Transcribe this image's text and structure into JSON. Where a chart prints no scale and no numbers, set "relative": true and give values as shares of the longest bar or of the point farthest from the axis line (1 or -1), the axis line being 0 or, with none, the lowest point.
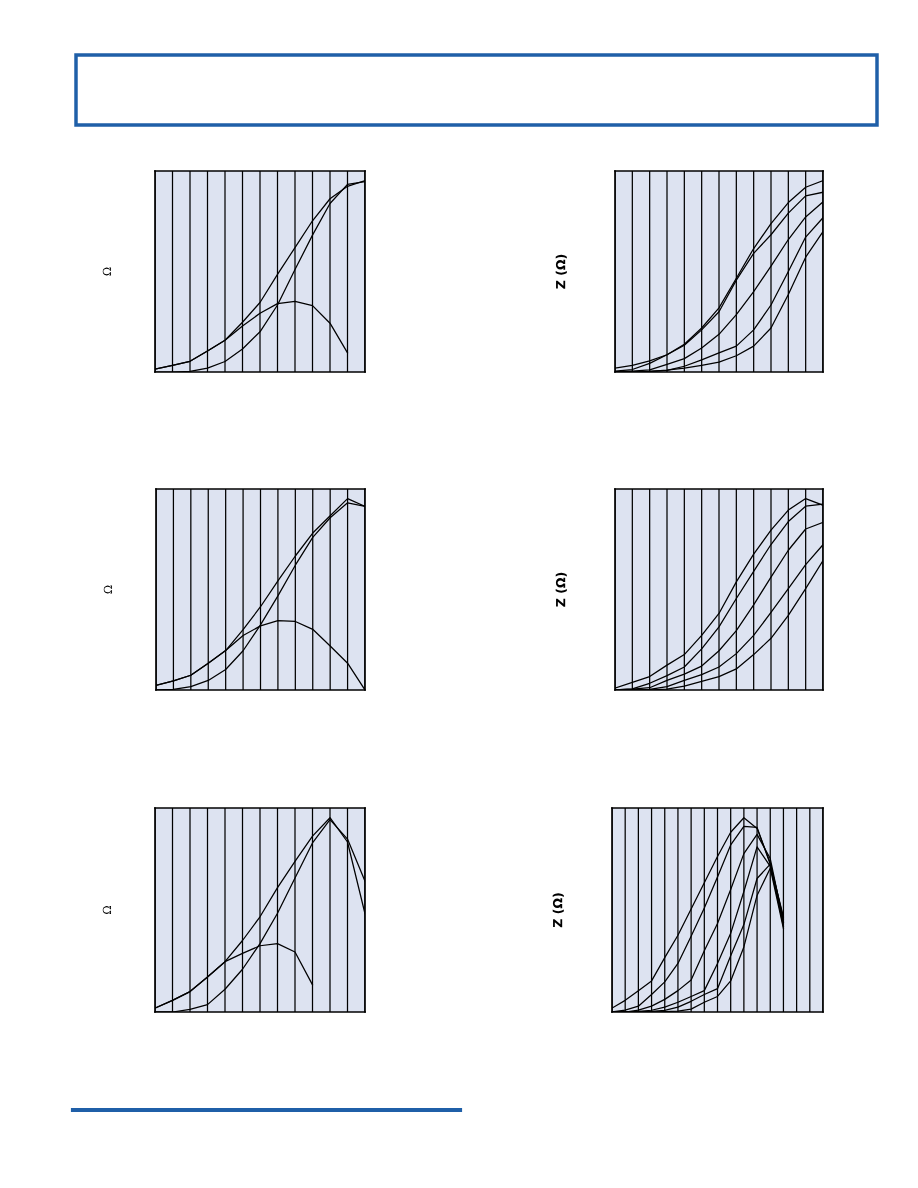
{
  "chart_data": [
    {
      "type": "line",
      "ylabel": "Ω",
      "relative": true,
      "grid": true,
      "categories": [
        null,
        null,
        null,
        null,
        null,
        null,
        null,
        null,
        null,
        null,
        null,
        null,
        null
      ],
      "series": [
        {
          "color": "#000000",
          "values": [
            0.015,
            0.035,
            0.056,
            0.11,
            0.166,
            0.26,
            0.363,
            0.51,
            0.65,
            0.79,
            0.905,
            0.97,
            1.0
          ]
        },
        {
          "color": "#000000",
          "values": [
            0.0,
            0.0,
            0.003,
            0.02,
            0.055,
            0.12,
            0.21,
            0.35,
            0.535,
            0.715,
            0.88,
            0.98,
            0.994
          ]
        },
        {
          "color": "#000000",
          "values": [
            0.015,
            0.035,
            0.056,
            0.11,
            0.166,
            0.24,
            0.307,
            0.357,
            0.369,
            0.347,
            0.255,
            0.1,
            null
          ]
        }
      ]
    },
    {
      "type": "line",
      "ylabel": "Z (Ω)",
      "relative": true,
      "grid": true,
      "categories": [
        null,
        null,
        null,
        null,
        null,
        null,
        null,
        null,
        null,
        null,
        null,
        null,
        null
      ],
      "series": [
        {
          "color": "#000000",
          "values": [
            0.02,
            0.035,
            0.058,
            0.09,
            0.145,
            0.23,
            0.335,
            0.49,
            0.645,
            0.775,
            0.885,
            0.965,
            1.0
          ]
        },
        {
          "color": "#000000",
          "values": [
            0.005,
            0.013,
            0.045,
            0.09,
            0.14,
            0.22,
            0.315,
            0.48,
            0.62,
            0.717,
            0.83,
            0.92,
            0.939
          ]
        },
        {
          "color": "#000000",
          "values": [
            0.0,
            0.005,
            0.011,
            0.04,
            0.07,
            0.125,
            0.197,
            0.3,
            0.42,
            0.553,
            0.692,
            0.81,
            0.889
          ]
        },
        {
          "color": "#000000",
          "values": [
            0.0,
            0.0,
            0.003,
            0.008,
            0.03,
            0.063,
            0.1,
            0.135,
            0.22,
            0.35,
            0.525,
            0.705,
            0.806
          ]
        },
        {
          "color": "#000000",
          "values": [
            0.0,
            0.0,
            0.003,
            0.01,
            0.02,
            0.035,
            0.052,
            0.085,
            0.135,
            0.23,
            0.405,
            0.6,
            0.733
          ]
        }
      ]
    },
    {
      "type": "line",
      "ylabel": "Ω",
      "relative": true,
      "grid": true,
      "categories": [
        null,
        null,
        null,
        null,
        null,
        null,
        null,
        null,
        null,
        null,
        null,
        null,
        null
      ],
      "series": [
        {
          "color": "#000000",
          "values": [
            0.024,
            0.048,
            0.077,
            0.14,
            0.206,
            0.315,
            0.435,
            0.57,
            0.7,
            0.82,
            0.91,
            1.0,
            0.959
          ]
        },
        {
          "color": "#000000",
          "values": [
            0.0,
            0.003,
            0.018,
            0.05,
            0.107,
            0.205,
            0.34,
            0.492,
            0.652,
            0.797,
            0.9,
            0.978,
            0.959
          ]
        },
        {
          "color": "#000000",
          "values": [
            0.024,
            0.048,
            0.077,
            0.14,
            0.206,
            0.285,
            0.335,
            0.362,
            0.358,
            0.317,
            0.23,
            0.14,
            0.0
          ]
        }
      ]
    },
    {
      "type": "line",
      "ylabel": "Z (Ω)",
      "relative": true,
      "grid": true,
      "categories": [
        null,
        null,
        null,
        null,
        null,
        null,
        null,
        null,
        null,
        null,
        null,
        null,
        null
      ],
      "series": [
        {
          "color": "#000000",
          "values": [
            0.01,
            0.04,
            0.07,
            0.13,
            0.185,
            0.285,
            0.4,
            0.565,
            0.71,
            0.835,
            0.94,
            1.0,
            0.965
          ]
        },
        {
          "color": "#000000",
          "values": [
            0.0,
            0.006,
            0.035,
            0.075,
            0.12,
            0.215,
            0.33,
            0.478,
            0.62,
            0.76,
            0.88,
            0.96,
            0.971
          ]
        },
        {
          "color": "#000000",
          "values": [
            0.0,
            0.004,
            0.012,
            0.05,
            0.083,
            0.125,
            0.205,
            0.31,
            0.445,
            0.59,
            0.73,
            0.841,
            0.876
          ]
        },
        {
          "color": "#000000",
          "values": [
            0.0,
            0.0,
            0.003,
            0.018,
            0.05,
            0.08,
            0.12,
            0.19,
            0.285,
            0.405,
            0.53,
            0.655,
            0.759
          ]
        },
        {
          "color": "#000000",
          "values": [
            0.0,
            0.0,
            0.0,
            0.005,
            0.02,
            0.045,
            0.07,
            0.11,
            0.185,
            0.27,
            0.39,
            0.53,
            0.676
          ]
        }
      ]
    },
    {
      "type": "line",
      "ylabel": "Ω",
      "relative": true,
      "grid": true,
      "categories": [
        null,
        null,
        null,
        null,
        null,
        null,
        null,
        null,
        null,
        null,
        null,
        null,
        null
      ],
      "series": [
        {
          "color": "#000000",
          "values": [
            0.02,
            0.06,
            0.105,
            0.18,
            0.259,
            0.368,
            0.49,
            0.64,
            0.775,
            0.905,
            1.0,
            0.875,
            0.506
          ]
        },
        {
          "color": "#000000",
          "values": [
            0.0,
            0.0,
            0.013,
            0.038,
            0.117,
            0.22,
            0.352,
            0.508,
            0.69,
            0.87,
            0.99,
            0.89,
            0.673
          ]
        },
        {
          "color": "#000000",
          "values": [
            0.02,
            0.06,
            0.105,
            0.18,
            0.259,
            0.302,
            0.341,
            0.352,
            0.309,
            0.14,
            null,
            null,
            null
          ]
        }
      ]
    },
    {
      "type": "line",
      "ylabel": "Z (Ω)",
      "relative": true,
      "grid": true,
      "categories": [
        null,
        null,
        null,
        null,
        null,
        null,
        null,
        null,
        null,
        null,
        null,
        null,
        null,
        null,
        null,
        null,
        null
      ],
      "series": [
        {
          "color": "#000000",
          "values": [
            0.02,
            0.06,
            0.11,
            0.16,
            0.28,
            0.395,
            0.53,
            0.665,
            0.8,
            0.925,
            1.0,
            0.945,
            0.767,
            0.48,
            null,
            null,
            null
          ]
        },
        {
          "color": "#000000",
          "values": [
            0.0,
            0.01,
            0.03,
            0.09,
            0.155,
            0.25,
            0.39,
            0.535,
            0.695,
            0.86,
            0.955,
            0.95,
            0.76,
            0.49,
            null,
            null,
            null
          ]
        },
        {
          "color": "#000000",
          "values": [
            0.0,
            0.0,
            0.01,
            0.03,
            0.065,
            0.11,
            0.165,
            0.315,
            0.455,
            0.63,
            0.815,
            0.914,
            0.79,
            0.465,
            null,
            null,
            null
          ]
        },
        {
          "color": "#000000",
          "values": [
            0.0,
            0.0,
            0.003,
            0.009,
            0.025,
            0.05,
            0.08,
            0.11,
            0.25,
            0.405,
            0.62,
            0.85,
            0.75,
            0.46,
            null,
            null,
            null
          ]
        },
        {
          "color": "#000000",
          "values": [
            0.0,
            0.0,
            0.0,
            0.003,
            0.008,
            0.025,
            0.055,
            0.09,
            0.12,
            0.29,
            0.45,
            0.687,
            0.761,
            0.44,
            null,
            null,
            null
          ]
        },
        {
          "color": "#000000",
          "values": [
            0.0,
            0.0,
            0.0,
            0.0,
            0.002,
            0.005,
            0.015,
            0.05,
            0.08,
            0.16,
            0.335,
            0.6,
            0.74,
            0.43,
            null,
            null,
            null
          ]
        }
      ]
    }
  ]
}
